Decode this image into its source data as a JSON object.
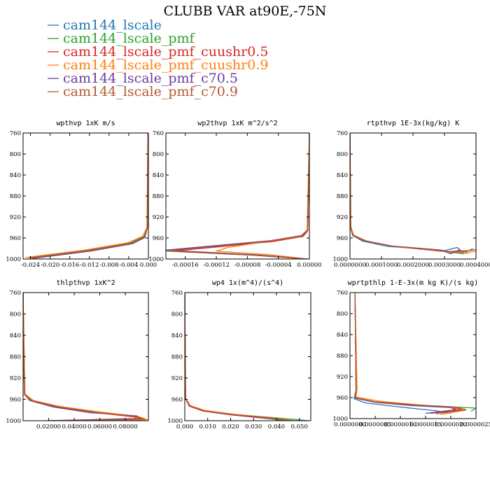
{
  "title": "CLUBB VAR at90E,-75N",
  "legend": [
    {
      "name": "cam144_lscale",
      "color": "#1f77b4"
    },
    {
      "name": "cam144_lscale_pmf",
      "color": "#2ca02c"
    },
    {
      "name": "cam144_lscale_pmf_cuushr0.5",
      "color": "#d62728"
    },
    {
      "name": "cam144_lscale_pmf_cuushr0.9",
      "color": "#ff7f0e"
    },
    {
      "name": "cam144_lscale_pmf_c70.5",
      "color": "#6a3d9a"
    },
    {
      "name": "cam144_lscale_pmf_c70.9",
      "color": "#b35a2e"
    }
  ],
  "chart_data": [
    {
      "type": "line",
      "title": "wpthvp  1xK m/s",
      "xlim": [
        -0.0255,
        0.0
      ],
      "ylim": [
        760,
        1000
      ],
      "yreverse": true,
      "xticks": [
        -0.024,
        -0.02,
        -0.016,
        -0.012,
        -0.008,
        -0.004,
        0.0
      ],
      "xticklabels": [
        "-0.024",
        "-0.020",
        "-0.016",
        "-0.012",
        "-0.008",
        "-0.004",
        "0.000"
      ],
      "yticks": [
        760,
        800,
        840,
        880,
        920,
        960,
        1000
      ],
      "series": [
        {
          "name": "cam144_lscale",
          "x": [
            -0.0001,
            -0.0002,
            -0.0008,
            -0.0035,
            -0.012,
            -0.024
          ],
          "y": [
            760,
            940,
            958,
            970,
            984,
            998
          ]
        },
        {
          "name": "cam144_lscale_pmf",
          "x": [
            -0.0001,
            -0.0002,
            -0.0009,
            -0.0036,
            -0.0125,
            -0.0245
          ],
          "y": [
            760,
            940,
            957,
            969,
            983,
            997
          ]
        },
        {
          "name": "cam144_lscale_pmf_cuushr0.5",
          "x": [
            -0.0001,
            -0.0002,
            -0.0008,
            -0.0034,
            -0.012,
            -0.0238
          ],
          "y": [
            760,
            941,
            958,
            970,
            984,
            998
          ]
        },
        {
          "name": "cam144_lscale_pmf_cuushr0.9",
          "x": [
            -0.0001,
            -0.0003,
            -0.0012,
            -0.0042,
            -0.013,
            -0.025
          ],
          "y": [
            760,
            940,
            957,
            969,
            983,
            997
          ]
        },
        {
          "name": "cam144_lscale_pmf_c70.5",
          "x": [
            -0.0001,
            -0.0002,
            -0.0007,
            -0.0033,
            -0.0118,
            -0.0236
          ],
          "y": [
            760,
            940,
            959,
            971,
            985,
            999
          ]
        },
        {
          "name": "cam144_lscale_pmf_c70.9",
          "x": [
            -0.0001,
            -0.0002,
            -0.0008,
            -0.0035,
            -0.0122,
            -0.0242
          ],
          "y": [
            760,
            941,
            958,
            970,
            984,
            998
          ]
        }
      ]
    },
    {
      "type": "line",
      "title": "wp2thvp  1xK m^2/s^2",
      "xlim": [
        -0.000185,
        0.0
      ],
      "ylim": [
        760,
        1000
      ],
      "yreverse": true,
      "xticks": [
        -0.00016,
        -0.00012,
        -8e-05,
        -4e-05,
        0.0
      ],
      "xticklabels": [
        "-0.00016",
        "-0.00012",
        "-0.00008",
        "-0.00004",
        "0.00000"
      ],
      "yticks": [
        760,
        800,
        840,
        880,
        920,
        960,
        1000
      ],
      "series": [
        {
          "name": "cam144_lscale",
          "x": [
            0.0,
            -2e-06,
            -9e-06,
            -5e-05,
            -0.00012,
            -0.000185,
            -7e-05,
            -3e-06
          ],
          "y": [
            760,
            945,
            956,
            966,
            976,
            984,
            992,
            1000
          ]
        },
        {
          "name": "cam144_lscale_pmf",
          "x": [
            0.0,
            -2e-06,
            -1e-05,
            -5.2e-05,
            -0.000122,
            -0.000183,
            -7e-05,
            -3e-06
          ],
          "y": [
            760,
            945,
            956,
            966,
            976,
            985,
            993,
            1000
          ]
        },
        {
          "name": "cam144_lscale_pmf_cuushr0.5",
          "x": [
            0.0,
            -2e-06,
            -8e-06,
            -4.8e-05,
            -0.000118,
            -0.000178,
            -7e-05,
            -3e-06
          ],
          "y": [
            760,
            946,
            957,
            967,
            977,
            985,
            993,
            1000
          ]
        },
        {
          "name": "cam144_lscale_pmf_cuushr0.9",
          "x": [
            0.0,
            -3e-06,
            -1.2e-05,
            -5.6e-05,
            -0.000105,
            -0.00012,
            -5e-05,
            -2e-06
          ],
          "y": [
            760,
            945,
            957,
            967,
            978,
            985,
            992,
            1000
          ]
        },
        {
          "name": "cam144_lscale_pmf_c70.5",
          "x": [
            0.0,
            -2e-06,
            -9e-06,
            -5e-05,
            -0.000125,
            -0.000184,
            -7e-05,
            -3e-06
          ],
          "y": [
            760,
            944,
            955,
            965,
            975,
            983,
            992,
            1000
          ]
        },
        {
          "name": "cam144_lscale_pmf_c70.9",
          "x": [
            0.0,
            -2e-06,
            -1e-05,
            -5.2e-05,
            -0.00012,
            -0.000181,
            -7e-05,
            -3e-06
          ],
          "y": [
            760,
            945,
            956,
            966,
            976,
            984,
            993,
            1000
          ]
        }
      ]
    },
    {
      "type": "line",
      "title": "rtpthvp  1E-3x(kg/kg) K",
      "xlim": [
        0.0,
        0.0004
      ],
      "ylim": [
        760,
        1000
      ],
      "yreverse": true,
      "xticks": [
        0.0,
        0.0001,
        0.0002,
        0.0003,
        0.0004
      ],
      "xticklabels": [
        "0.0000000",
        "0.0001000",
        "0.0002000",
        "0.0003000",
        "0.0004000"
      ],
      "yticks": [
        760,
        800,
        840,
        880,
        920,
        960,
        1000
      ],
      "series": [
        {
          "name": "cam144_lscale",
          "x": [
            0.0,
            2e-06,
            8e-06,
            4e-05,
            0.00012,
            0.0003,
            0.00034,
            0.00036
          ],
          "y": [
            760,
            940,
            955,
            966,
            976,
            984,
            978,
            988
          ]
        },
        {
          "name": "cam144_lscale_pmf",
          "x": [
            0.0,
            2e-06,
            9e-06,
            4.2e-05,
            0.00013,
            0.00029,
            0.00036,
            0.00039
          ],
          "y": [
            760,
            940,
            955,
            965,
            975,
            985,
            990,
            980
          ]
        },
        {
          "name": "cam144_lscale_pmf_cuushr0.5",
          "x": [
            0.0,
            2e-06,
            1e-05,
            5e-05,
            0.00014,
            0.0003,
            0.00038,
            0.0004
          ],
          "y": [
            760,
            940,
            956,
            966,
            976,
            986,
            984,
            982
          ]
        },
        {
          "name": "cam144_lscale_pmf_cuushr0.9",
          "x": [
            0.0,
            3e-06,
            1.2e-05,
            5.5e-05,
            0.00015,
            0.00031,
            0.00037,
            0.0004
          ],
          "y": [
            760,
            939,
            955,
            966,
            977,
            986,
            989,
            985
          ]
        },
        {
          "name": "cam144_lscale_pmf_c70.5",
          "x": [
            0.0,
            2e-06,
            9e-06,
            4.5e-05,
            0.00013,
            0.00029,
            0.00032,
            0.00035
          ],
          "y": [
            760,
            940,
            954,
            965,
            975,
            983,
            990,
            982
          ]
        },
        {
          "name": "cam144_lscale_pmf_c70.9",
          "x": [
            0.0,
            2e-06,
            1e-05,
            4.8e-05,
            0.00014,
            0.0003,
            0.00035,
            0.00039
          ],
          "y": [
            760,
            940,
            955,
            966,
            976,
            985,
            987,
            983
          ]
        }
      ]
    },
    {
      "type": "line",
      "title": "thlpthvp  1xK^2",
      "xlim": [
        0.0,
        0.098
      ],
      "ylim": [
        760,
        1000
      ],
      "yreverse": true,
      "xticks": [
        0.02,
        0.04,
        0.06,
        0.08
      ],
      "xticklabels": [
        "0.02000",
        "0.04000",
        "0.06000",
        "0.08000"
      ],
      "yticks": [
        760,
        800,
        840,
        880,
        920,
        960,
        1000
      ],
      "series": [
        {
          "name": "cam144_lscale",
          "x": [
            0.0,
            0.001,
            0.006,
            0.025,
            0.055,
            0.088,
            0.093,
            0.02
          ],
          "y": [
            760,
            950,
            962,
            974,
            984,
            992,
            997,
            1000
          ]
        },
        {
          "name": "cam144_lscale_pmf",
          "x": [
            0.0,
            0.001,
            0.007,
            0.026,
            0.056,
            0.089,
            0.096,
            0.025
          ],
          "y": [
            760,
            950,
            962,
            973,
            983,
            992,
            998,
            1000
          ]
        },
        {
          "name": "cam144_lscale_pmf_cuushr0.5",
          "x": [
            0.0,
            0.001,
            0.006,
            0.024,
            0.054,
            0.087,
            0.094,
            0.02
          ],
          "y": [
            760,
            951,
            963,
            974,
            984,
            993,
            998,
            1000
          ]
        },
        {
          "name": "cam144_lscale_pmf_cuushr0.9",
          "x": [
            0.0,
            0.0015,
            0.008,
            0.028,
            0.058,
            0.09,
            0.097,
            0.03
          ],
          "y": [
            760,
            950,
            962,
            973,
            983,
            992,
            998,
            1000
          ]
        },
        {
          "name": "cam144_lscale_pmf_c70.5",
          "x": [
            0.0,
            0.001,
            0.005,
            0.023,
            0.053,
            0.089,
            0.088,
            0.018
          ],
          "y": [
            760,
            950,
            962,
            974,
            985,
            991,
            996,
            1000
          ]
        },
        {
          "name": "cam144_lscale_pmf_c70.9",
          "x": [
            0.0,
            0.001,
            0.006,
            0.025,
            0.055,
            0.088,
            0.095,
            0.022
          ],
          "y": [
            760,
            950,
            962,
            973,
            984,
            992,
            997,
            1000
          ]
        }
      ]
    },
    {
      "type": "line",
      "title": "wp4  1x(m^4)/(s^4)",
      "xlim": [
        0.0,
        0.055
      ],
      "ylim": [
        760,
        1000
      ],
      "yreverse": true,
      "xticks": [
        0.0,
        0.01,
        0.02,
        0.03,
        0.04,
        0.05
      ],
      "xticklabels": [
        "0.000",
        "0.010",
        "0.020",
        "0.030",
        "0.040",
        "0.050"
      ],
      "yticks": [
        760,
        800,
        840,
        880,
        920,
        960,
        1000
      ],
      "series": [
        {
          "name": "cam144_lscale",
          "x": [
            0.0,
            0.0003,
            0.002,
            0.008,
            0.02,
            0.035,
            0.046
          ],
          "y": [
            760,
            958,
            972,
            981,
            988,
            994,
            1000
          ]
        },
        {
          "name": "cam144_lscale_pmf",
          "x": [
            0.0,
            0.0003,
            0.0022,
            0.0085,
            0.021,
            0.038,
            0.054
          ],
          "y": [
            760,
            958,
            972,
            981,
            988,
            994,
            1000
          ]
        },
        {
          "name": "cam144_lscale_pmf_cuushr0.5",
          "x": [
            0.0,
            0.0003,
            0.002,
            0.008,
            0.02,
            0.034,
            0.045
          ],
          "y": [
            760,
            959,
            973,
            982,
            989,
            995,
            1000
          ]
        },
        {
          "name": "cam144_lscale_pmf_cuushr0.9",
          "x": [
            0.0,
            0.0004,
            0.0025,
            0.009,
            0.022,
            0.036,
            0.048
          ],
          "y": [
            760,
            958,
            972,
            981,
            988,
            994,
            1000
          ]
        },
        {
          "name": "cam144_lscale_pmf_c70.5",
          "x": [
            0.0,
            0.0003,
            0.0019,
            0.0078,
            0.019,
            0.033,
            0.044
          ],
          "y": [
            760,
            958,
            972,
            981,
            988,
            994,
            1000
          ]
        },
        {
          "name": "cam144_lscale_pmf_c70.9",
          "x": [
            0.0,
            0.0003,
            0.002,
            0.008,
            0.02,
            0.035,
            0.046
          ],
          "y": [
            760,
            958,
            972,
            981,
            988,
            994,
            1000
          ]
        }
      ]
    },
    {
      "type": "line",
      "title": "wprtpthlp  1-E-3x(m kg K)/(s kg)",
      "xlim": [
        0.0,
        2.5e-06
      ],
      "ylim": [
        760,
        1000
      ],
      "yreverse": true,
      "xticks": [
        0.0,
        5e-07,
        1e-06,
        1.5e-06,
        2e-06,
        2.5e-06
      ],
      "xticklabels": [
        "0.0000000",
        "0.0000005",
        "0.0000010",
        "0.0000015",
        "0.0000020",
        "0.0000025"
      ],
      "yticks": [
        760,
        800,
        840,
        880,
        920,
        960,
        1000
      ],
      "series": [
        {
          "name": "cam144_lscale",
          "x": [
            1e-07,
            1.2e-07,
            8e-08,
            3e-07,
            1e-06,
            1.7e-06,
            2e-06
          ],
          "y": [
            760,
            945,
            962,
            970,
            978,
            985,
            990
          ]
        },
        {
          "name": "cam144_lscale_pmf",
          "x": [
            1e-07,
            1.2e-07,
            1e-07,
            5e-07,
            1.3e-06,
            2.1e-06,
            2.5e-06,
            2.4e-06
          ],
          "y": [
            760,
            945,
            960,
            968,
            974,
            978,
            980,
            986
          ]
        },
        {
          "name": "cam144_lscale_pmf_cuushr0.5",
          "x": [
            1e-07,
            1.2e-07,
            1e-07,
            5e-07,
            1.2e-06,
            2e-06,
            2.2e-06,
            1.6e-06
          ],
          "y": [
            760,
            945,
            960,
            968,
            974,
            978,
            983,
            990
          ]
        },
        {
          "name": "cam144_lscale_pmf_cuushr0.9",
          "x": [
            1e-07,
            1.4e-07,
            1.2e-07,
            6e-07,
            1.4e-06,
            2.1e-06,
            2.3e-06,
            1.8e-06
          ],
          "y": [
            760,
            945,
            959,
            967,
            974,
            979,
            984,
            992
          ]
        },
        {
          "name": "cam144_lscale_pmf_c70.5",
          "x": [
            1e-07,
            1.2e-07,
            1e-07,
            5e-07,
            1.2e-06,
            2e-06,
            2.1e-06,
            1.5e-06
          ],
          "y": [
            760,
            945,
            961,
            969,
            975,
            979,
            983,
            990
          ]
        },
        {
          "name": "cam144_lscale_pmf_c70.9",
          "x": [
            1e-07,
            1.2e-07,
            1e-07,
            5e-07,
            1.3e-06,
            2.1e-06,
            2.3e-06,
            1.7e-06
          ],
          "y": [
            760,
            945,
            960,
            968,
            974,
            978,
            983,
            991
          ]
        }
      ]
    }
  ]
}
